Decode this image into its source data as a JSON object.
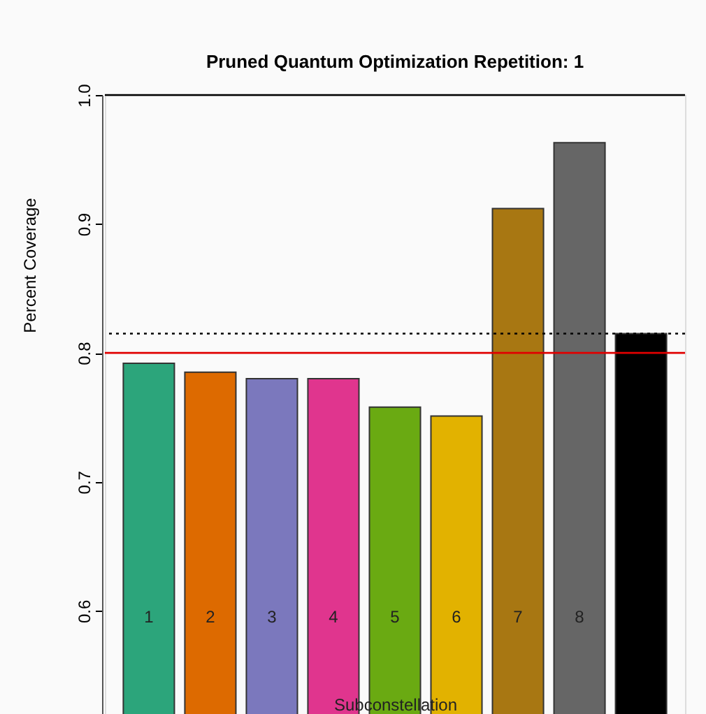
{
  "chart_data": {
    "type": "bar",
    "title": "Pruned Quantum Optimization Repetition:  1",
    "xlabel": "Subconstellation",
    "ylabel": "Percent Coverage",
    "categories": [
      "1",
      "2",
      "3",
      "4",
      "5",
      "6",
      "7",
      "8",
      null
    ],
    "values": [
      0.792,
      0.785,
      0.78,
      0.78,
      0.758,
      0.751,
      0.912,
      0.963,
      0.815
    ],
    "colors": [
      "#2ca57b",
      "#dd6a00",
      "#7b78bd",
      "#e0358e",
      "#6aaa12",
      "#e2b200",
      "#a87712",
      "#666666",
      "#000000"
    ],
    "ylim": [
      0.52,
      1.0
    ],
    "yticks": [
      0.6,
      0.7,
      0.8,
      0.9,
      {
        "value": 1.0,
        "label": "1.0"
      }
    ],
    "grid": false,
    "ref_lines": [
      {
        "axis": "y",
        "value": 1.0,
        "color": "#000000",
        "line_style": "solid"
      },
      {
        "axis": "y",
        "value": 0.815,
        "color": "#000000",
        "line_style": "dotted"
      },
      {
        "axis": "y",
        "value": 0.8,
        "color": "#e00000",
        "line_style": "solid"
      }
    ]
  }
}
